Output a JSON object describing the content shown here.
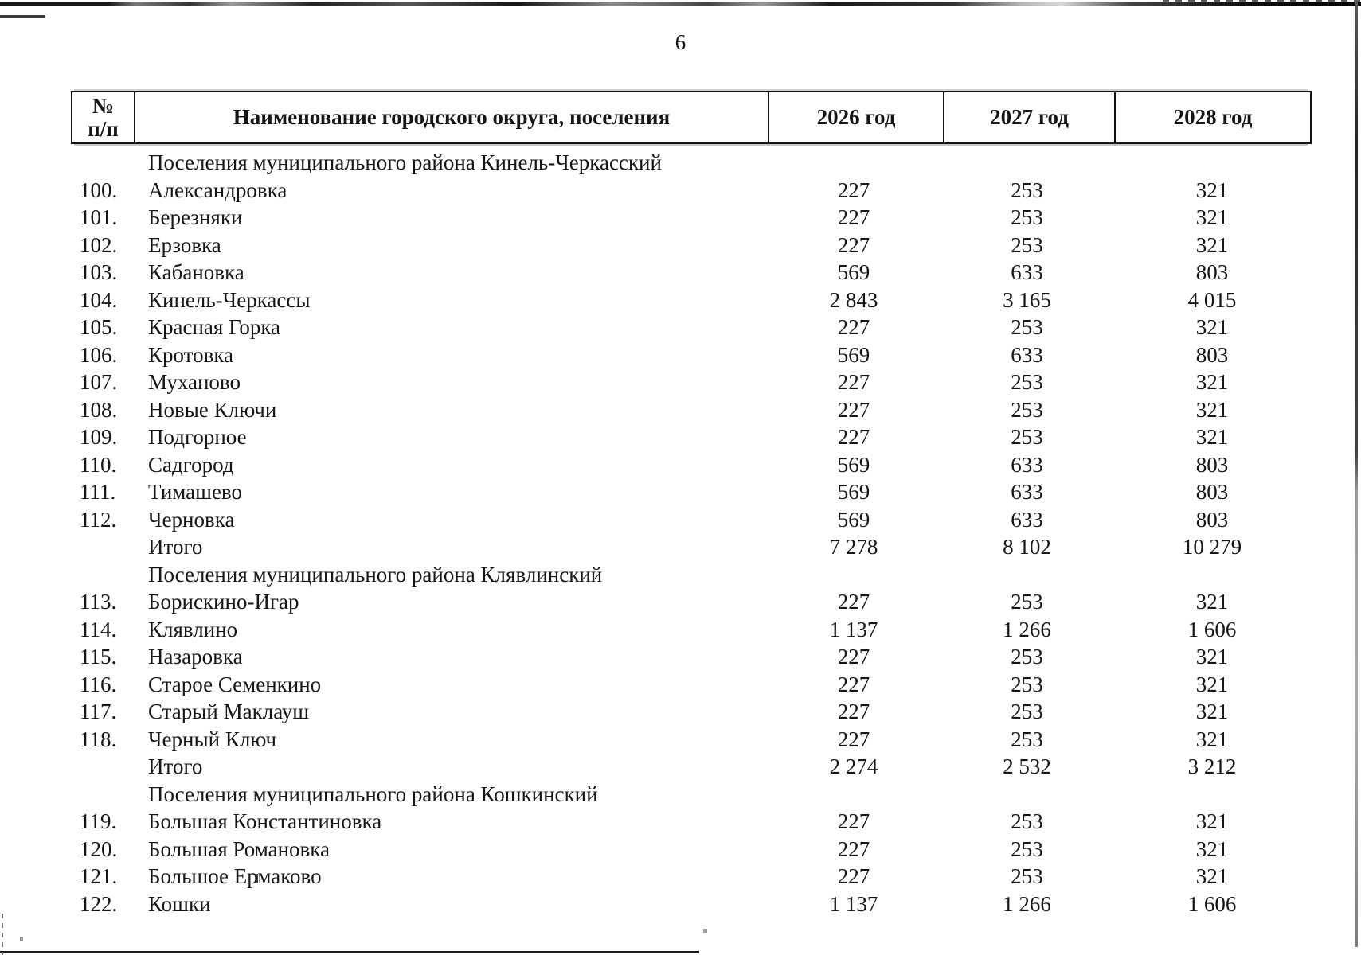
{
  "page": {
    "number": "6"
  },
  "table": {
    "header": {
      "col_num_line1": "№",
      "col_num_line2": "п/п",
      "col_name": "Наименование городского округа, поселения",
      "col_2026": "2026 год",
      "col_2027": "2027 год",
      "col_2028": "2028 год"
    },
    "rows": [
      {
        "type": "section",
        "name": "Поселения муниципального района Кинель-Черкасский"
      },
      {
        "type": "item",
        "num": "100.",
        "name": "Александровка",
        "y2026": "227",
        "y2027": "253",
        "y2028": "321"
      },
      {
        "type": "item",
        "num": "101.",
        "name": "Березняки",
        "y2026": "227",
        "y2027": "253",
        "y2028": "321"
      },
      {
        "type": "item",
        "num": "102.",
        "name": "Ерзовка",
        "y2026": "227",
        "y2027": "253",
        "y2028": "321"
      },
      {
        "type": "item",
        "num": "103.",
        "name": "Кабановка",
        "y2026": "569",
        "y2027": "633",
        "y2028": "803"
      },
      {
        "type": "item",
        "num": "104.",
        "name": "Кинель-Черкассы",
        "y2026": "2 843",
        "y2027": "3 165",
        "y2028": "4 015"
      },
      {
        "type": "item",
        "num": "105.",
        "name": "Красная Горка",
        "y2026": "227",
        "y2027": "253",
        "y2028": "321"
      },
      {
        "type": "item",
        "num": "106.",
        "name": "Кротовка",
        "y2026": "569",
        "y2027": "633",
        "y2028": "803"
      },
      {
        "type": "item",
        "num": "107.",
        "name": "Муханово",
        "y2026": "227",
        "y2027": "253",
        "y2028": "321"
      },
      {
        "type": "item",
        "num": "108.",
        "name": "Новые Ключи",
        "y2026": "227",
        "y2027": "253",
        "y2028": "321"
      },
      {
        "type": "item",
        "num": "109.",
        "name": "Подгорное",
        "y2026": "227",
        "y2027": "253",
        "y2028": "321"
      },
      {
        "type": "item",
        "num": "110.",
        "name": "Садгород",
        "y2026": "569",
        "y2027": "633",
        "y2028": "803"
      },
      {
        "type": "item",
        "num": "111.",
        "name": "Тимашево",
        "y2026": "569",
        "y2027": "633",
        "y2028": "803"
      },
      {
        "type": "item",
        "num": "112.",
        "name": "Черновка",
        "y2026": "569",
        "y2027": "633",
        "y2028": "803"
      },
      {
        "type": "total",
        "name": "Итого",
        "y2026": "7 278",
        "y2027": "8 102",
        "y2028": "10 279"
      },
      {
        "type": "section",
        "name": "Поселения муниципального района Клявлинский"
      },
      {
        "type": "item",
        "num": "113.",
        "name": "Борискино-Игар",
        "y2026": "227",
        "y2027": "253",
        "y2028": "321"
      },
      {
        "type": "item",
        "num": "114.",
        "name": "Клявлино",
        "y2026": "1 137",
        "y2027": "1 266",
        "y2028": "1 606"
      },
      {
        "type": "item",
        "num": "115.",
        "name": "Назаровка",
        "y2026": "227",
        "y2027": "253",
        "y2028": "321"
      },
      {
        "type": "item",
        "num": "116.",
        "name": "Старое Семенкино",
        "y2026": "227",
        "y2027": "253",
        "y2028": "321"
      },
      {
        "type": "item",
        "num": "117.",
        "name": "Старый Маклауш",
        "y2026": "227",
        "y2027": "253",
        "y2028": "321"
      },
      {
        "type": "item",
        "num": "118.",
        "name": "Черный Ключ",
        "y2026": "227",
        "y2027": "253",
        "y2028": "321"
      },
      {
        "type": "total",
        "name": "Итого",
        "y2026": "2 274",
        "y2027": "2 532",
        "y2028": "3 212"
      },
      {
        "type": "section",
        "name": "Поселения муниципального района Кошкинский"
      },
      {
        "type": "item",
        "num": "119.",
        "name": "Большая Константиновка",
        "y2026": "227",
        "y2027": "253",
        "y2028": "321"
      },
      {
        "type": "item",
        "num": "120.",
        "name": "Большая Романовка",
        "y2026": "227",
        "y2027": "253",
        "y2028": "321"
      },
      {
        "type": "item",
        "num": "121.",
        "name": "Большое Ермаково",
        "y2026": "227",
        "y2027": "253",
        "y2028": "321"
      },
      {
        "type": "item",
        "num": "122.",
        "name": "Кошки",
        "y2026": "1 137",
        "y2027": "1 266",
        "y2028": "1 606"
      }
    ]
  },
  "colors": {
    "text": "#161616",
    "line": "#141414",
    "background": "#ffffff"
  }
}
